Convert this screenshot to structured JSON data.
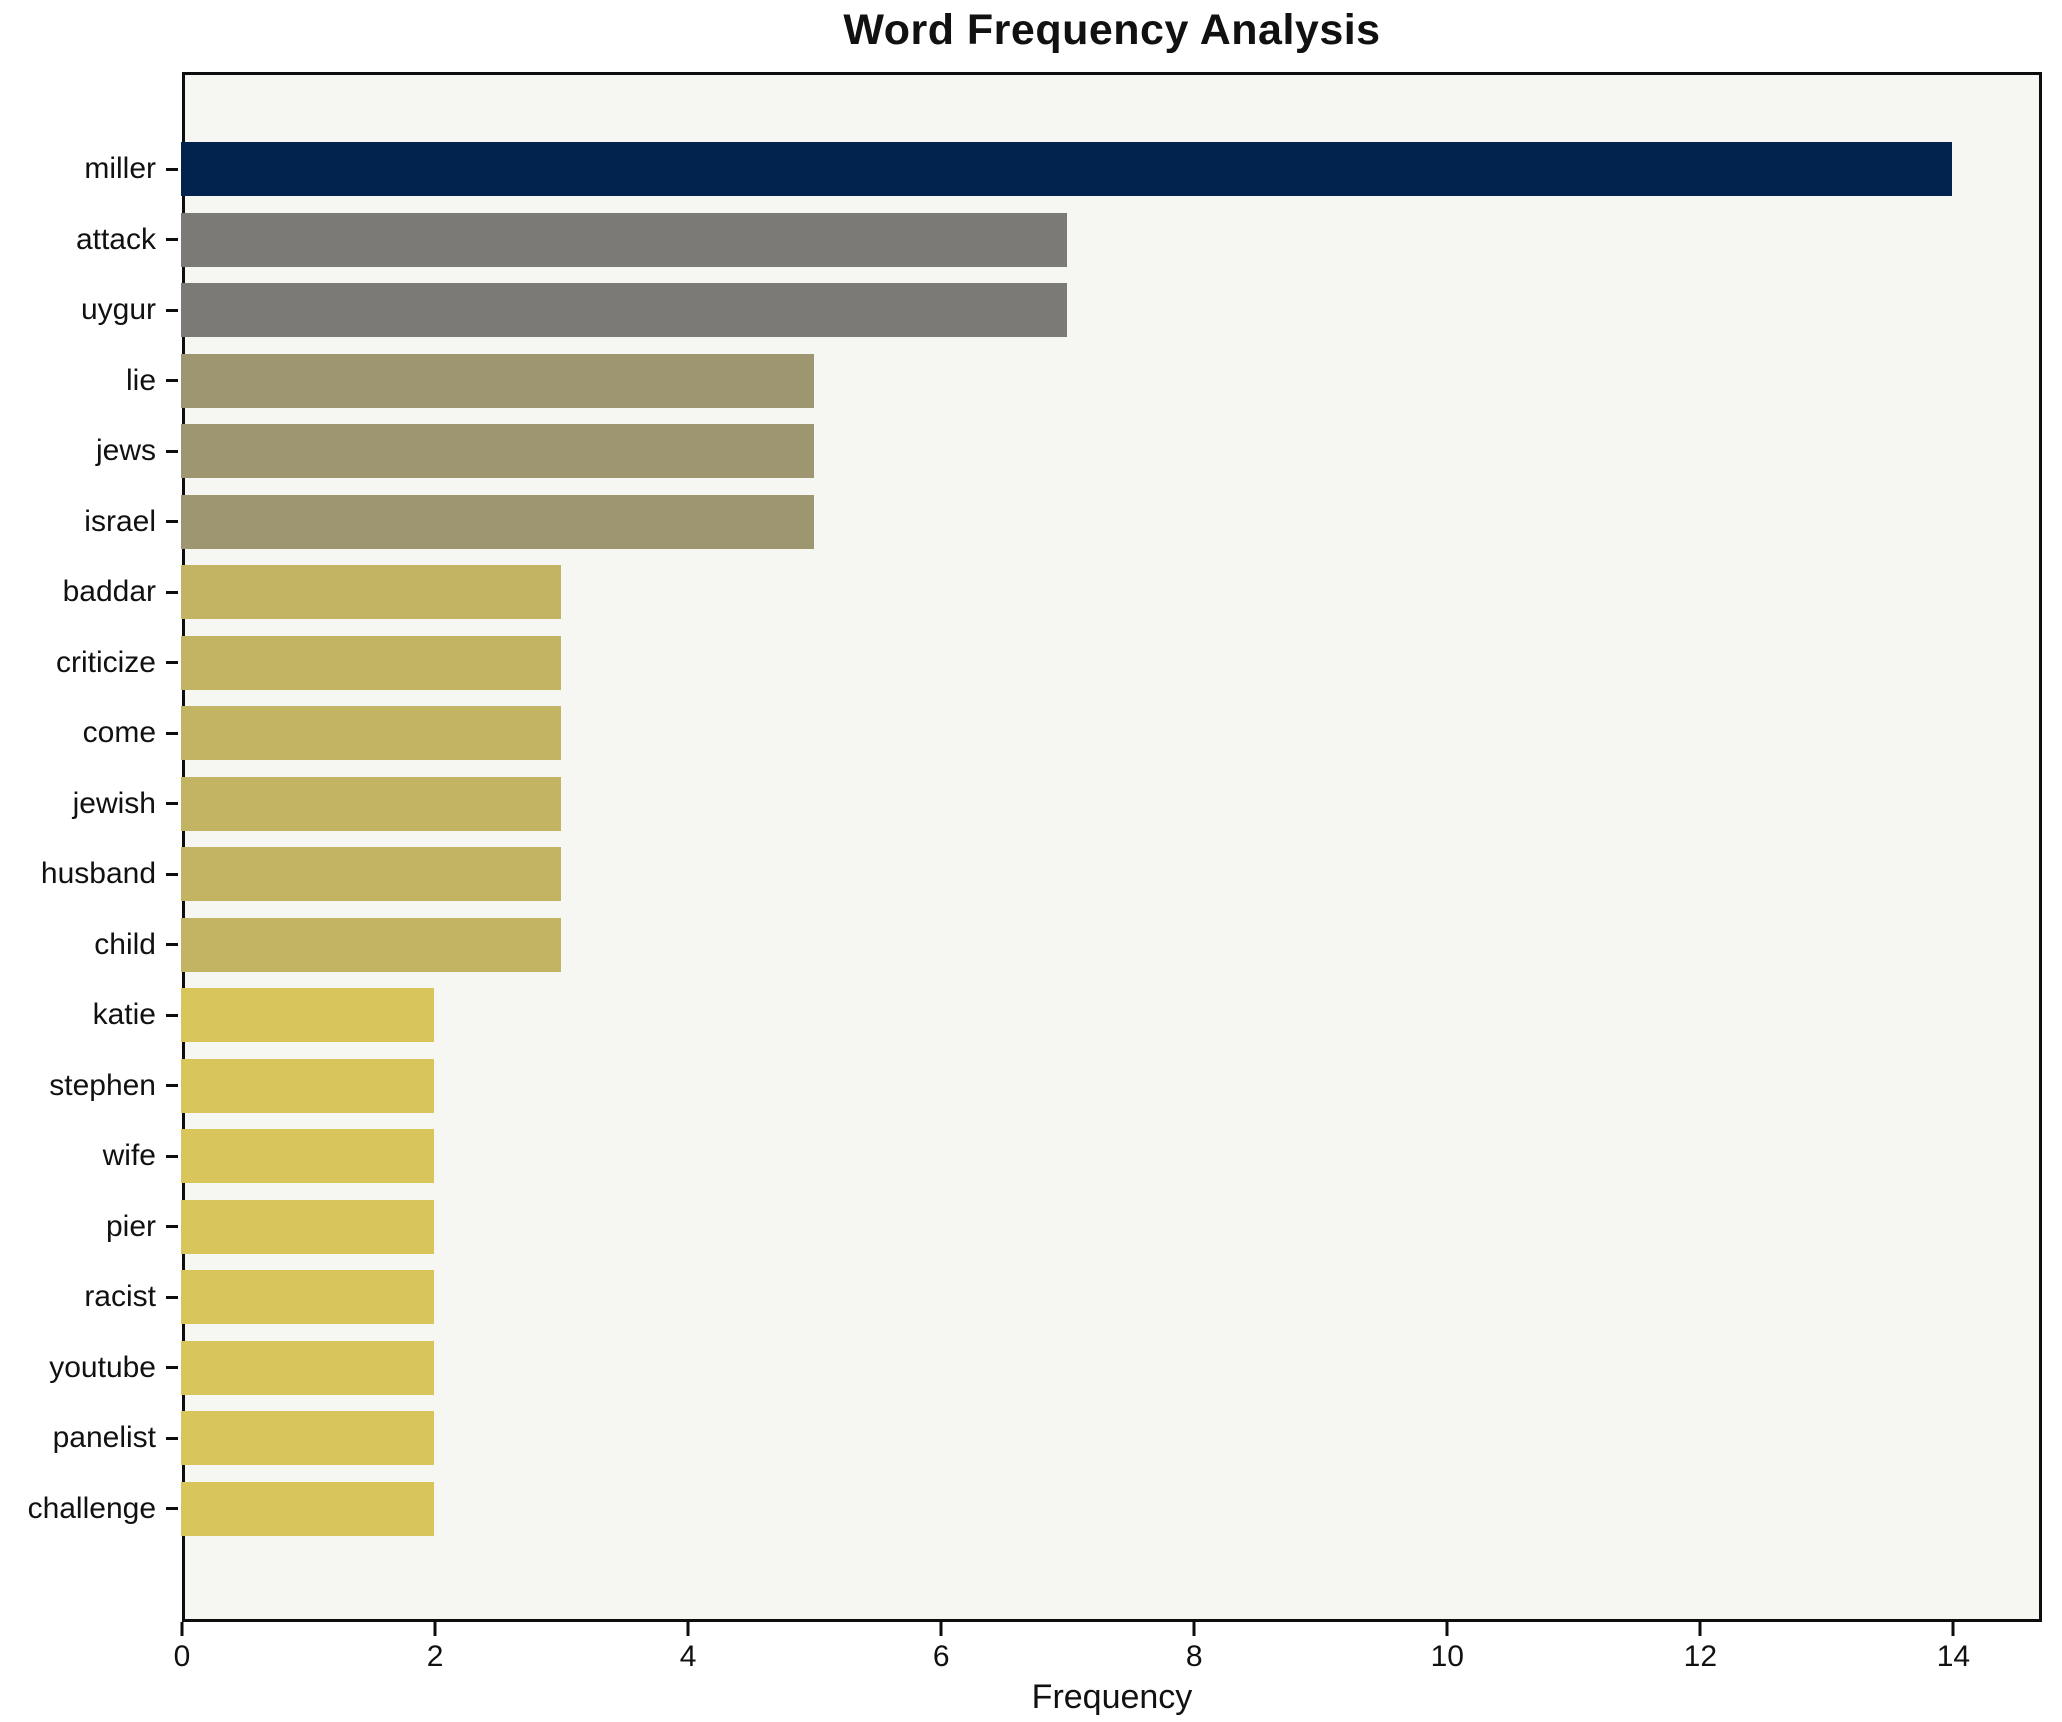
{
  "title": "Word Frequency Analysis",
  "chart_data": {
    "type": "bar",
    "orientation": "horizontal",
    "title": "Word Frequency Analysis",
    "xlabel": "Frequency",
    "ylabel": "",
    "categories": [
      "miller",
      "attack",
      "uygur",
      "lie",
      "jews",
      "israel",
      "baddar",
      "criticize",
      "come",
      "jewish",
      "husband",
      "child",
      "katie",
      "stephen",
      "wife",
      "pier",
      "racist",
      "youtube",
      "panelist",
      "challenge"
    ],
    "values": [
      14,
      7,
      7,
      5,
      5,
      5,
      3,
      3,
      3,
      3,
      3,
      3,
      2,
      2,
      2,
      2,
      2,
      2,
      2,
      2
    ],
    "bar_colors": [
      "#03234f",
      "#7b7a76",
      "#7b7a76",
      "#9e9671",
      "#9e9671",
      "#9e9671",
      "#c3b464",
      "#c3b464",
      "#c3b464",
      "#c3b464",
      "#c3b464",
      "#c3b464",
      "#d8c65c",
      "#d8c65c",
      "#d8c65c",
      "#d8c65c",
      "#d8c65c",
      "#d8c65c",
      "#d8c65c",
      "#d8c65c"
    ],
    "xlim": [
      0,
      14.7
    ],
    "x_ticks": [
      0,
      2,
      4,
      6,
      8,
      10,
      12,
      14
    ],
    "grid": false,
    "legend": null,
    "colors": {
      "plot_background": "#f6f6f3",
      "figure_background": "#ffffff",
      "spine": "#0d0d0d",
      "text": "#111111"
    }
  }
}
